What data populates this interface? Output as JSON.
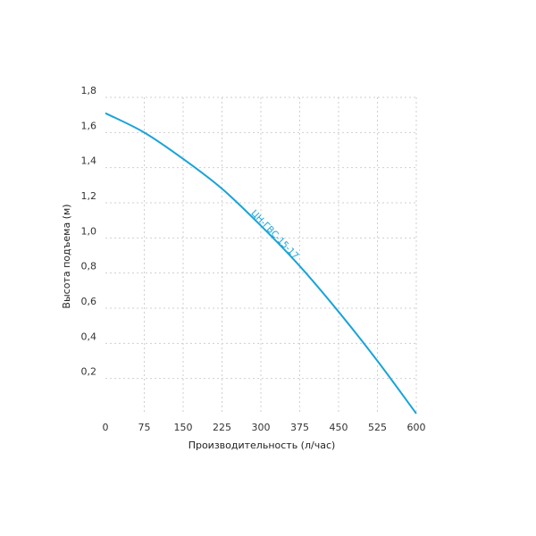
{
  "chart_data": {
    "type": "line",
    "xlabel": "Производительность (л/час)",
    "ylabel": "Высота подъема (м)",
    "xlim": [
      0,
      600
    ],
    "ylim": [
      0,
      1.8
    ],
    "x_ticks": [
      0,
      75,
      150,
      225,
      300,
      375,
      450,
      525,
      600
    ],
    "x_tick_labels": [
      "0",
      "75",
      "150",
      "225",
      "300",
      "375",
      "450",
      "525",
      "600"
    ],
    "y_ticks": [
      0.2,
      0.4,
      0.6,
      0.8,
      1.0,
      1.2,
      1.4,
      1.6,
      1.8
    ],
    "y_tick_labels": [
      "0,2",
      "0,4",
      "0,6",
      "0,8",
      "1,0",
      "1,2",
      "1,4",
      "1,6",
      "1,8"
    ],
    "grid": true,
    "series": [
      {
        "name": "ЦН-ГВС-15-17",
        "color": "#1aa3d9",
        "x": [
          0,
          75,
          150,
          225,
          300,
          375,
          450,
          525,
          600
        ],
        "y": [
          1.71,
          1.6,
          1.45,
          1.28,
          1.07,
          0.84,
          0.58,
          0.3,
          0.0
        ]
      }
    ]
  }
}
